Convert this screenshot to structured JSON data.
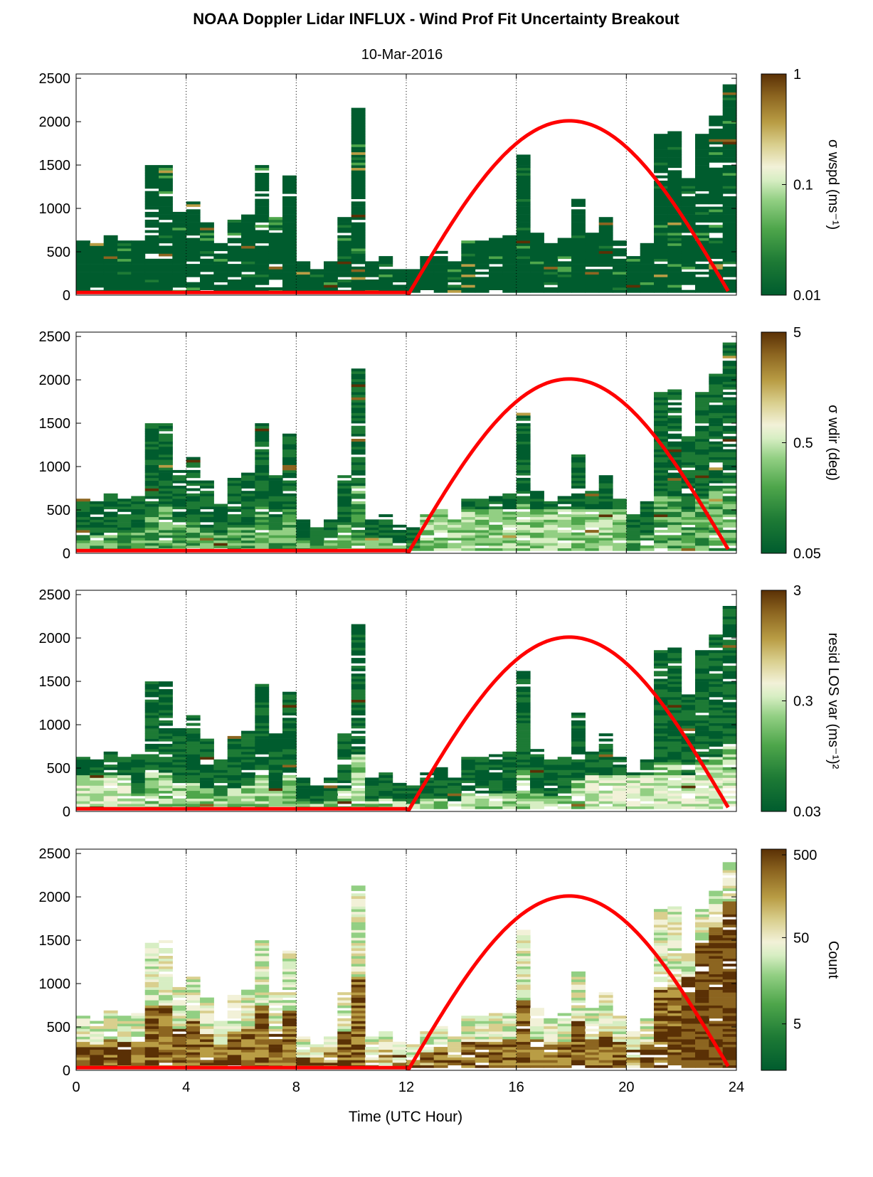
{
  "figure": {
    "title": "NOAA Doppler Lidar INFLUX - Wind Prof Fit Uncertainty Breakout",
    "subtitle": "10-Mar-2016",
    "xlabel": "Time (UTC Hour)"
  },
  "chart_data": {
    "type": "heatmap",
    "x_ticks": [
      0,
      4,
      8,
      12,
      16,
      20,
      24
    ],
    "xlim": [
      0,
      24
    ],
    "ylim": [
      0,
      2550
    ],
    "y_ticks": [
      0,
      500,
      1000,
      1500,
      2000,
      2500
    ],
    "vertical_grid_hours": [
      4,
      8,
      12,
      16,
      20
    ],
    "grid_style": "dotted vertical lines",
    "colormap": [
      "#005c2e",
      "#1d7a35",
      "#4ea64b",
      "#92cf83",
      "#d7eec3",
      "#f2f1d8",
      "#d9cf8e",
      "#b99d45",
      "#8c6520",
      "#5a3005"
    ],
    "overlay_curve": {
      "color": "#ff0000",
      "description_points_hours": [
        0,
        12.1,
        14,
        16,
        17.9,
        20,
        22,
        23.75
      ],
      "description_points_height": [
        30,
        30,
        1250,
        1780,
        2010,
        1780,
        1250,
        20
      ]
    },
    "coverage": {
      "hours": [
        0,
        0.5,
        1,
        1.5,
        2,
        2.5,
        3,
        3.5,
        4,
        4.5,
        5,
        5.5,
        6,
        6.5,
        7,
        7.5,
        8,
        8.5,
        9,
        9.5,
        10,
        10.5,
        11,
        11.5,
        12,
        12.5,
        13,
        13.5,
        14,
        14.5,
        15,
        15.5,
        16,
        16.5,
        17,
        17.5,
        18,
        18.5,
        19,
        19.5,
        20,
        20.5,
        21,
        21.5,
        22,
        22.5,
        23,
        23.5
      ],
      "top_height_m": [
        620,
        600,
        680,
        620,
        650,
        1480,
        1500,
        950,
        1100,
        820,
        580,
        850,
        920,
        1490,
        900,
        1380,
        380,
        300,
        380,
        900,
        2150,
        380,
        440,
        320,
        280,
        450,
        500,
        380,
        620,
        620,
        640,
        690,
        1600,
        700,
        600,
        640,
        1140,
        700,
        900,
        620,
        450,
        600,
        1850,
        1870,
        1350,
        1850,
        2050,
        2420
      ]
    },
    "panels": [
      {
        "name": "σ wspd",
        "colorbar_label": "σ wspd (ms⁻¹)",
        "colorbar_scale": "log",
        "colorbar_ticks": [
          "1",
          "0.1",
          "0.01"
        ],
        "colorbar_range": [
          0.01,
          1
        ]
      },
      {
        "name": "σ wdir",
        "colorbar_label": "σ wdir (deg)",
        "colorbar_scale": "log",
        "colorbar_ticks": [
          "5",
          "0.5",
          "0.05"
        ],
        "colorbar_range": [
          0.05,
          5
        ]
      },
      {
        "name": "resid LOS var",
        "colorbar_label": "resid LOS var (ms⁻¹)²",
        "colorbar_scale": "log",
        "colorbar_ticks": [
          "3",
          "0.3",
          "0.03"
        ],
        "colorbar_range": [
          0.03,
          3
        ]
      },
      {
        "name": "Count",
        "colorbar_label": "Count",
        "colorbar_scale": "log",
        "colorbar_ticks": [
          "500",
          "50",
          "5"
        ],
        "colorbar_range": [
          1,
          500
        ]
      }
    ]
  }
}
